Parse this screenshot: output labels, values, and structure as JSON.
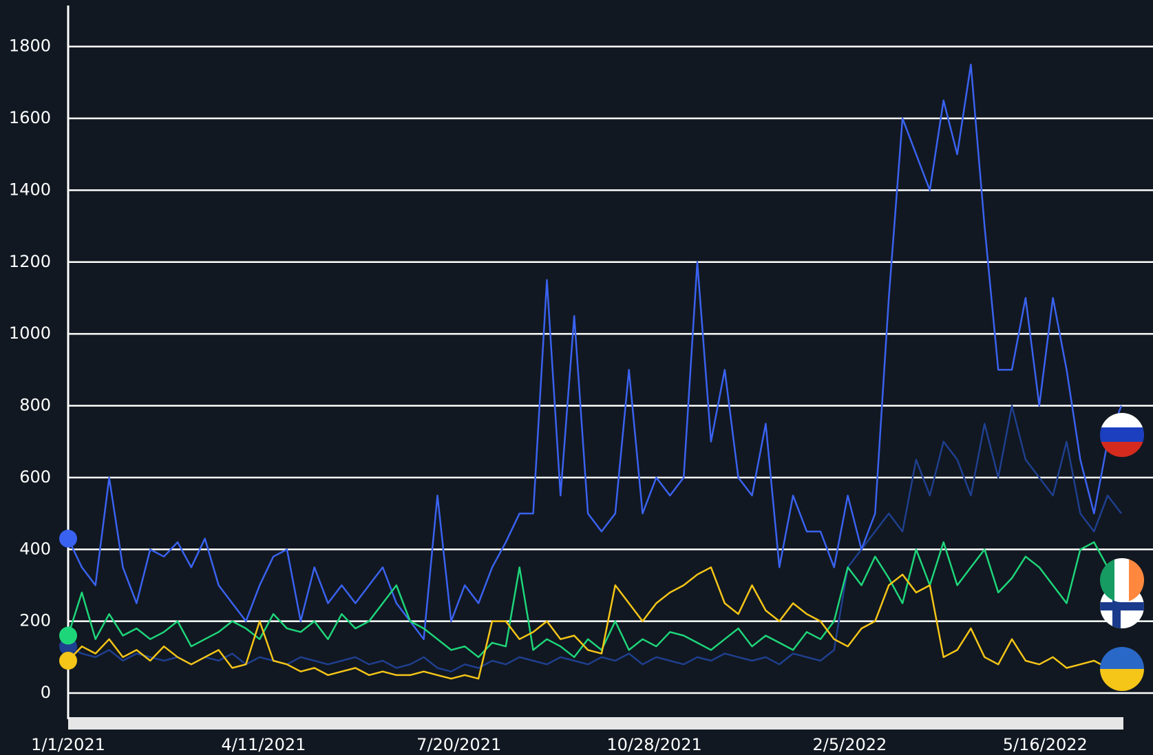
{
  "chart_data": {
    "type": "line",
    "x": [
      "1/1/2021",
      "1/8/2021",
      "1/15/2021",
      "1/22/2021",
      "1/29/2021",
      "2/5/2021",
      "2/12/2021",
      "2/19/2021",
      "2/26/2021",
      "3/5/2021",
      "3/12/2021",
      "3/19/2021",
      "3/26/2021",
      "4/2/2021",
      "4/9/2021",
      "4/16/2021",
      "4/23/2021",
      "4/30/2021",
      "5/7/2021",
      "5/14/2021",
      "5/21/2021",
      "5/28/2021",
      "6/4/2021",
      "6/11/2021",
      "6/18/2021",
      "6/25/2021",
      "7/2/2021",
      "7/9/2021",
      "7/16/2021",
      "7/23/2021",
      "7/30/2021",
      "8/6/2021",
      "8/13/2021",
      "8/20/2021",
      "8/27/2021",
      "9/3/2021",
      "9/10/2021",
      "9/17/2021",
      "9/24/2021",
      "10/1/2021",
      "10/8/2021",
      "10/15/2021",
      "10/22/2021",
      "10/29/2021",
      "11/5/2021",
      "11/12/2021",
      "11/19/2021",
      "11/26/2021",
      "12/3/2021",
      "12/10/2021",
      "12/17/2021",
      "12/24/2021",
      "12/31/2021",
      "1/7/2022",
      "1/14/2022",
      "1/21/2022",
      "1/28/2022",
      "2/4/2022",
      "2/11/2022",
      "2/18/2022",
      "2/25/2022",
      "3/4/2022",
      "3/11/2022",
      "3/18/2022",
      "3/25/2022",
      "4/1/2022",
      "4/8/2022",
      "4/15/2022",
      "4/22/2022",
      "4/29/2022",
      "5/6/2022",
      "5/13/2022",
      "5/20/2022",
      "5/27/2022",
      "6/3/2022",
      "6/10/2022",
      "6/17/2022",
      "6/24/2022"
    ],
    "series": [
      {
        "color": "#1f3f8f",
        "values": [
          130,
          110,
          100,
          120,
          90,
          110,
          100,
          90,
          100,
          80,
          100,
          90,
          110,
          80,
          100,
          90,
          80,
          100,
          90,
          80,
          90,
          100,
          80,
          90,
          70,
          80,
          100,
          70,
          60,
          80,
          70,
          90,
          80,
          100,
          90,
          80,
          100,
          90,
          80,
          100,
          90,
          110,
          80,
          100,
          90,
          80,
          100,
          90,
          110,
          100,
          90,
          100,
          80,
          110,
          100,
          90,
          120,
          350,
          400,
          450,
          500,
          450,
          650,
          550,
          700,
          650,
          550,
          750,
          600,
          800,
          650,
          600,
          550,
          700,
          500,
          450,
          550,
          500
        ]
      },
      {
        "color": "#3a62f0",
        "values": [
          430,
          350,
          300,
          600,
          350,
          250,
          400,
          380,
          420,
          350,
          430,
          300,
          250,
          200,
          300,
          380,
          400,
          200,
          350,
          250,
          300,
          250,
          300,
          350,
          250,
          200,
          150,
          550,
          200,
          300,
          250,
          350,
          420,
          500,
          500,
          1150,
          550,
          1050,
          500,
          450,
          500,
          900,
          500,
          600,
          550,
          600,
          1200,
          700,
          900,
          600,
          550,
          750,
          350,
          550,
          450,
          450,
          350,
          550,
          400,
          500,
          1100,
          1600,
          1500,
          1400,
          1650,
          1500,
          1750,
          1300,
          900,
          900,
          1100,
          800,
          1100,
          900,
          650,
          500,
          700,
          800
        ]
      },
      {
        "color": "#1ed67a",
        "values": [
          160,
          280,
          150,
          220,
          160,
          180,
          150,
          170,
          200,
          130,
          150,
          170,
          200,
          180,
          150,
          220,
          180,
          170,
          200,
          150,
          220,
          180,
          200,
          250,
          300,
          200,
          180,
          150,
          120,
          130,
          100,
          140,
          130,
          350,
          120,
          150,
          130,
          100,
          150,
          120,
          200,
          120,
          150,
          130,
          170,
          160,
          140,
          120,
          150,
          180,
          130,
          160,
          140,
          120,
          170,
          150,
          200,
          350,
          300,
          380,
          320,
          250,
          400,
          300,
          420,
          300,
          350,
          400,
          280,
          320,
          380,
          350,
          300,
          250,
          400,
          420,
          350,
          300
        ]
      },
      {
        "color": "#f5c518",
        "values": [
          90,
          130,
          110,
          150,
          100,
          120,
          90,
          130,
          100,
          80,
          100,
          120,
          70,
          80,
          200,
          90,
          80,
          60,
          70,
          50,
          60,
          70,
          50,
          60,
          50,
          50,
          60,
          50,
          40,
          50,
          40,
          200,
          200,
          150,
          170,
          200,
          150,
          160,
          120,
          110,
          300,
          250,
          200,
          250,
          280,
          300,
          330,
          350,
          250,
          220,
          300,
          230,
          200,
          250,
          220,
          200,
          150,
          130,
          180,
          200,
          300,
          330,
          280,
          300,
          100,
          120,
          180,
          100,
          80,
          150,
          90,
          80,
          100,
          70,
          80,
          90,
          70,
          120
        ]
      }
    ],
    "xlim": [
      "1/1/2021",
      "6/24/2022"
    ],
    "xticks": [
      "1/1/2021",
      "4/11/2021",
      "7/20/2021",
      "10/28/2021",
      "2/5/2022",
      "5/16/2022"
    ],
    "ylim": [
      0,
      1920
    ],
    "yticks": [
      0,
      200,
      400,
      600,
      800,
      1000,
      1200,
      1400,
      1600,
      1800
    ],
    "grid": true
  }
}
